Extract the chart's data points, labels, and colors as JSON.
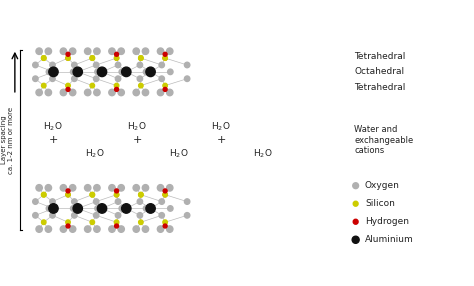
{
  "fig_width": 4.74,
  "fig_height": 2.86,
  "dpi": 100,
  "bg_color": "#ffffff",
  "oxygen_color": "#b0b0b0",
  "silicon_color": "#cccc00",
  "hydrogen_color": "#cc0000",
  "aluminium_color": "#111111",
  "line_color": "#bbbbbb",
  "text_color": "#222222",
  "labels": {
    "tetrahedral1": "Tetrahedral",
    "octahedral": "Octahedral",
    "tetrahedral2": "Tetrahedral",
    "water_cations": "Water and\nexchangeable\ncations",
    "layer_spacing": "Layer spacing\nca. 1-2 nm or more",
    "oxygen": "Oxygen",
    "silicon": "Silicon",
    "hydrogen": "Hydrogen",
    "aluminium": "Aluminium"
  }
}
